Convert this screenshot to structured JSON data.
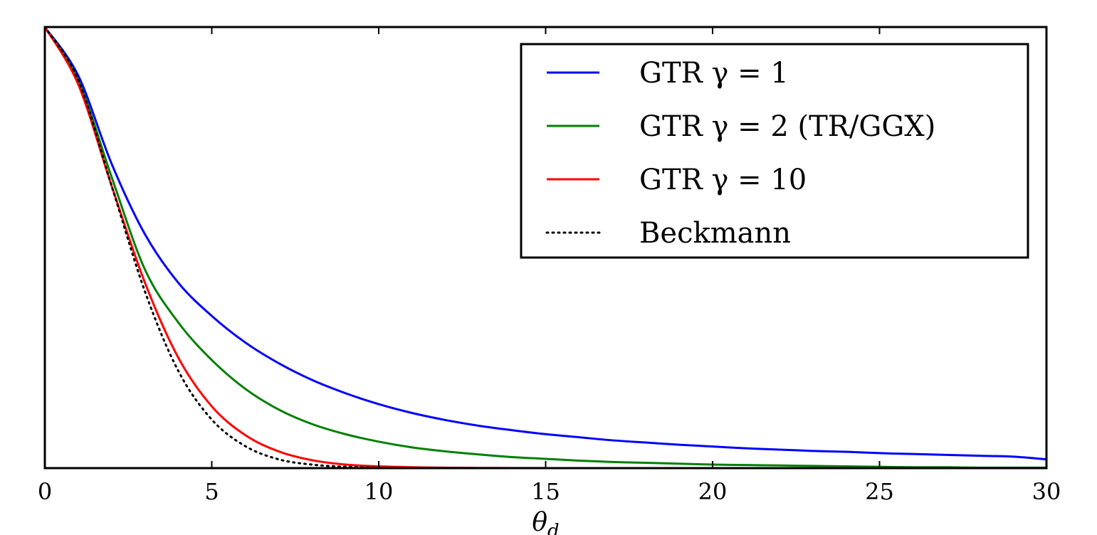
{
  "chart_data": {
    "type": "line",
    "xlabel": "θd",
    "x_ticks": [
      "0",
      "5",
      "10",
      "15",
      "20",
      "25",
      "30"
    ],
    "xlim": [
      0,
      30
    ],
    "ylim": [
      0,
      1
    ],
    "y_ticks_labeled": false,
    "grid": false,
    "legend_position": "top-right",
    "x": [
      0,
      1,
      2,
      3,
      4,
      5,
      6,
      7,
      8,
      9,
      10,
      11,
      12,
      13,
      14,
      15,
      16,
      17,
      18,
      19,
      20,
      21,
      22,
      23,
      24,
      25,
      26,
      27,
      28,
      29,
      30
    ],
    "series": [
      {
        "name": "GTR γ = 1",
        "color": "#0000ff",
        "style": "solid",
        "values": [
          1.0,
          0.89,
          0.69,
          0.53,
          0.42,
          0.345,
          0.285,
          0.238,
          0.2,
          0.17,
          0.145,
          0.125,
          0.109,
          0.096,
          0.086,
          0.077,
          0.07,
          0.063,
          0.058,
          0.053,
          0.049,
          0.045,
          0.042,
          0.039,
          0.037,
          0.034,
          0.032,
          0.03,
          0.028,
          0.026,
          0.02
        ]
      },
      {
        "name": "GTR γ = 2 (TR/GGX)",
        "color": "#008000",
        "style": "solid",
        "values": [
          1.0,
          0.88,
          0.66,
          0.45,
          0.33,
          0.245,
          0.18,
          0.133,
          0.1,
          0.077,
          0.06,
          0.047,
          0.038,
          0.031,
          0.025,
          0.021,
          0.017,
          0.014,
          0.012,
          0.01,
          0.008,
          0.007,
          0.006,
          0.005,
          0.004,
          0.003,
          0.002,
          0.002,
          0.001,
          0.001,
          0.001
        ]
      },
      {
        "name": "GTR γ = 10",
        "color": "#ff0000",
        "style": "solid",
        "values": [
          1.0,
          0.87,
          0.64,
          0.42,
          0.25,
          0.14,
          0.075,
          0.038,
          0.018,
          0.008,
          0.004,
          0.002,
          0.001,
          0.0005,
          0.0002,
          0.0001,
          0,
          0,
          0,
          0,
          0,
          0,
          0,
          0,
          0,
          0,
          0,
          0,
          0,
          0,
          0
        ]
      },
      {
        "name": "Beckmann",
        "color": "#000000",
        "style": "dotted",
        "values": [
          1.0,
          0.88,
          0.64,
          0.4,
          0.22,
          0.11,
          0.05,
          0.02,
          0.008,
          0.003,
          0.001,
          0.0003,
          0.0001,
          0,
          0,
          0,
          0,
          0,
          0,
          0,
          0,
          0,
          0,
          0,
          0,
          0,
          0,
          0,
          0,
          0,
          0
        ]
      }
    ]
  }
}
